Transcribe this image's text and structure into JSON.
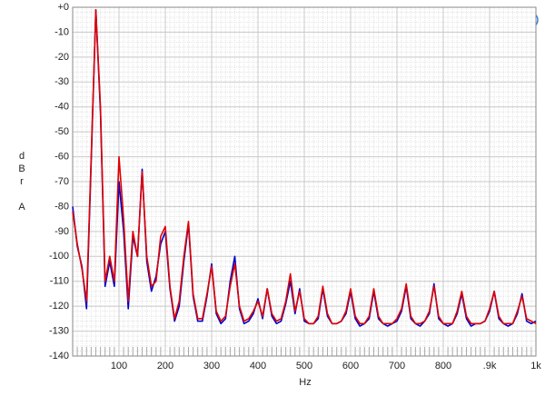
{
  "chart_data": {
    "type": "line",
    "logo": "Ap",
    "x_label": "Hz",
    "y_label": "dBr A",
    "x": [
      0,
      10,
      20,
      30,
      40,
      50,
      60,
      70,
      80,
      90,
      100,
      110,
      120,
      130,
      140,
      150,
      160,
      170,
      180,
      190,
      200,
      210,
      220,
      230,
      240,
      250,
      260,
      270,
      280,
      290,
      300,
      310,
      320,
      330,
      340,
      350,
      360,
      370,
      380,
      390,
      400,
      410,
      420,
      430,
      440,
      450,
      460,
      470,
      480,
      490,
      500,
      510,
      520,
      530,
      540,
      550,
      560,
      570,
      580,
      590,
      600,
      610,
      620,
      630,
      640,
      650,
      660,
      670,
      680,
      690,
      700,
      710,
      720,
      730,
      740,
      750,
      760,
      770,
      780,
      790,
      800,
      810,
      820,
      830,
      840,
      850,
      860,
      870,
      880,
      890,
      900,
      910,
      920,
      930,
      940,
      950,
      960,
      970,
      980,
      990,
      1000
    ],
    "series": [
      {
        "color": "#0000cc",
        "values": [
          -80,
          -96,
          -104,
          -121,
          -62,
          -1,
          -42,
          -112,
          -102,
          -112,
          -70,
          -90,
          -121,
          -92,
          -100,
          -65,
          -102,
          -114,
          -108,
          -95,
          -90,
          -113,
          -126,
          -120,
          -102,
          -87,
          -116,
          -126,
          -126,
          -116,
          -103,
          -123,
          -127,
          -125,
          -110,
          -100,
          -121,
          -127,
          -126,
          -123,
          -117,
          -125,
          -113,
          -124,
          -127,
          -126,
          -119,
          -110,
          -123,
          -113,
          -126,
          -127,
          -127,
          -125,
          -113,
          -124,
          -127,
          -127,
          -126,
          -123,
          -114,
          -125,
          -128,
          -127,
          -125,
          -114,
          -125,
          -127,
          -128,
          -127,
          -126,
          -122,
          -112,
          -125,
          -127,
          -128,
          -126,
          -123,
          -111,
          -125,
          -127,
          -128,
          -127,
          -123,
          -115,
          -125,
          -128,
          -127,
          -127,
          -126,
          -122,
          -114,
          -125,
          -127,
          -128,
          -127,
          -123,
          -115,
          -126,
          -127,
          -126
        ]
      },
      {
        "color": "#e00000",
        "values": [
          -82,
          -95,
          -105,
          -118,
          -60,
          -1,
          -40,
          -110,
          -100,
          -110,
          -60,
          -85,
          -118,
          -90,
          -100,
          -66,
          -100,
          -112,
          -110,
          -92,
          -88,
          -112,
          -125,
          -118,
          -100,
          -86,
          -115,
          -125,
          -125,
          -115,
          -104,
          -122,
          -126,
          -124,
          -112,
          -103,
          -120,
          -126,
          -125,
          -122,
          -118,
          -124,
          -113,
          -123,
          -126,
          -125,
          -118,
          -107,
          -122,
          -114,
          -125,
          -127,
          -127,
          -124,
          -112,
          -123,
          -127,
          -127,
          -126,
          -122,
          -113,
          -124,
          -127,
          -127,
          -124,
          -113,
          -124,
          -127,
          -127,
          -127,
          -125,
          -121,
          -111,
          -124,
          -127,
          -127,
          -126,
          -122,
          -112,
          -124,
          -127,
          -127,
          -127,
          -122,
          -114,
          -124,
          -127,
          -127,
          -127,
          -126,
          -121,
          -114,
          -124,
          -127,
          -127,
          -127,
          -122,
          -116,
          -125,
          -126,
          -127
        ]
      }
    ],
    "xlim": [
      0,
      1000
    ],
    "xticks": [
      100,
      200,
      300,
      400,
      500,
      600,
      700,
      800,
      {
        "value": 900,
        "label": ".9k"
      },
      {
        "value": 1000,
        "label": "1k"
      }
    ],
    "ylim": [
      -140,
      0
    ],
    "yticks": [
      {
        "value": 0,
        "label": "+0"
      },
      -10,
      -20,
      -30,
      -40,
      -50,
      -60,
      -70,
      -80,
      -90,
      -100,
      -110,
      -120,
      -130,
      -140
    ],
    "grid": true
  }
}
